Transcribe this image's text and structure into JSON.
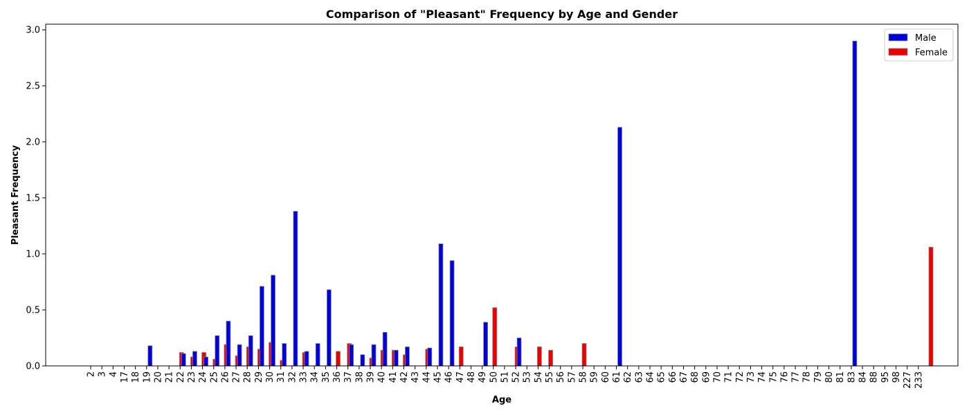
{
  "chart_data": {
    "type": "bar",
    "title": "Comparison of \"Pleasant\" Frequency by Age and Gender",
    "xlabel": "Age",
    "ylabel": "Pleasant Frequency",
    "ylim": [
      0,
      3.05
    ],
    "yticks": [
      "0.0",
      "0.5",
      "1.0",
      "1.5",
      "2.0",
      "2.5",
      "3.0"
    ],
    "grid": false,
    "legend_position": "top-right",
    "categories": [
      "2",
      "3",
      "4",
      "17",
      "18",
      "19",
      "20",
      "21",
      "22",
      "23",
      "24",
      "25",
      "26",
      "27",
      "28",
      "29",
      "30",
      "31",
      "32",
      "33",
      "34",
      "35",
      "36",
      "37",
      "38",
      "39",
      "40",
      "41",
      "42",
      "43",
      "44",
      "45",
      "46",
      "47",
      "48",
      "49",
      "50",
      "51",
      "52",
      "53",
      "54",
      "55",
      "56",
      "57",
      "58",
      "59",
      "60",
      "61",
      "62",
      "63",
      "64",
      "65",
      "66",
      "67",
      "68",
      "69",
      "70",
      "71",
      "72",
      "73",
      "74",
      "75",
      "76",
      "77",
      "78",
      "79",
      "80",
      "81",
      "83",
      "84",
      "88",
      "95",
      "98",
      "227",
      "233"
    ],
    "series": [
      {
        "name": "Male",
        "color": "#0000dd",
        "values": [
          0,
          0,
          0,
          0,
          0,
          0.18,
          0,
          0,
          0.11,
          0.13,
          0.08,
          0.27,
          0.4,
          0.19,
          0.27,
          0.71,
          0.81,
          0.2,
          1.38,
          0.13,
          0.2,
          0.68,
          0,
          0.19,
          0.1,
          0.19,
          0.3,
          0.14,
          0.17,
          0,
          0.16,
          1.09,
          0.94,
          0,
          0,
          0.39,
          0,
          0,
          0.25,
          0,
          0,
          0,
          0,
          0,
          0,
          0,
          0,
          2.13,
          0,
          0,
          0,
          0,
          0,
          0,
          0,
          0,
          0,
          0,
          0,
          0,
          0,
          0,
          0,
          0,
          0,
          0,
          0,
          0,
          2.9,
          0,
          0,
          0,
          0,
          0,
          0
        ]
      },
      {
        "name": "Female",
        "color": "#ee0000",
        "values": [
          0,
          0,
          0,
          0,
          0,
          0,
          0,
          0.12,
          0.08,
          0.12,
          0.06,
          0.19,
          0.09,
          0.17,
          0.15,
          0.21,
          0.05,
          0,
          0.12,
          0,
          0,
          0.13,
          0.2,
          0,
          0.07,
          0.14,
          0.14,
          0.1,
          0,
          0.15,
          0,
          0,
          0.17,
          0,
          0,
          0.52,
          0,
          0.17,
          0,
          0.17,
          0.14,
          0,
          0,
          0.2,
          0,
          0,
          0,
          0,
          0,
          0,
          0,
          0,
          0,
          0,
          0,
          0,
          0,
          0,
          0,
          0,
          0,
          0,
          0,
          0,
          0,
          0,
          0,
          0,
          0,
          0,
          0,
          0,
          0,
          0,
          1.06
        ]
      }
    ]
  }
}
